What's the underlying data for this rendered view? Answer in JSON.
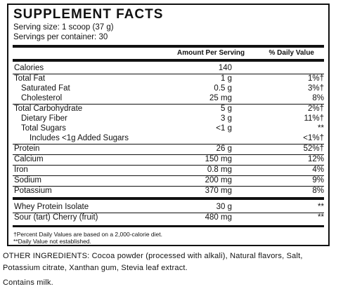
{
  "title": "SUPPLEMENT FACTS",
  "serving_size": "Serving size: 1 scoop (37 g)",
  "servings_per_container": "Servings per container: 30",
  "col_amount": "Amount Per Serving",
  "col_dv": "% Daily Value",
  "rows": [
    {
      "name": "Calories",
      "amount": "140",
      "dv": ""
    },
    {
      "name": "Total Fat",
      "amount": "1 g",
      "dv": "1%†"
    },
    {
      "name": "Saturated Fat",
      "amount": "0.5 g",
      "dv": "3%†"
    },
    {
      "name": "Cholesterol",
      "amount": "25 mg",
      "dv": "8%"
    },
    {
      "name": "Total Carbohydrate",
      "amount": "5 g",
      "dv": "2%†"
    },
    {
      "name": "Dietary Fiber",
      "amount": "3 g",
      "dv": "11%†"
    },
    {
      "name": "Total Sugars",
      "amount": "<1 g",
      "dv": "**"
    },
    {
      "name": "Includes <1g Added Sugars",
      "amount": "",
      "dv": "<1%†"
    },
    {
      "name": "Protein",
      "amount": "26 g",
      "dv": "52%†"
    },
    {
      "name": "Calcium",
      "amount": "150 mg",
      "dv": "12%"
    },
    {
      "name": "Iron",
      "amount": "0.8 mg",
      "dv": "4%"
    },
    {
      "name": "Sodium",
      "amount": "200 mg",
      "dv": "9%"
    },
    {
      "name": "Potassium",
      "amount": "370 mg",
      "dv": "8%"
    },
    {
      "name": "Whey Protein Isolate",
      "amount": "30 g",
      "dv": "**"
    },
    {
      "name": "Sour (tart) Cherry (fruit)",
      "amount": "480 mg",
      "dv": "**"
    }
  ],
  "footnote_1": "†Percent Daily Values are based on a 2,000-calorie diet.",
  "footnote_2": "**Daily Value not established.",
  "other_ingredients_line1": "OTHER INGREDIENTS: Cocoa powder (processed with alkali), Natural flavors, Salt,",
  "other_ingredients_line2": "Potassium citrate, Xanthan gum, Stevia leaf extract.",
  "allergen": "Contains milk."
}
